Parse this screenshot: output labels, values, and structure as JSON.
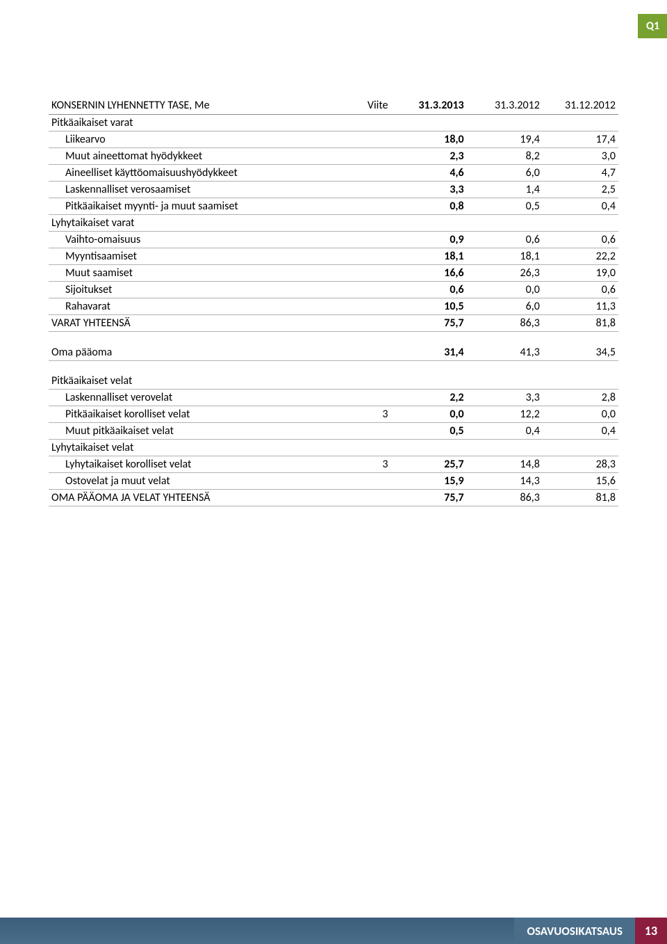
{
  "badge": "Q1",
  "table": {
    "title": "KONSERNIN LYHENNETTY TASE, Me",
    "viite_header": "Viite",
    "col1": "31.3.2013",
    "col2": "31.3.2012",
    "col3": "31.12.2012",
    "rows": [
      {
        "label": "Pitkäaikaiset varat",
        "indent": false,
        "viite": "",
        "v1": "",
        "v2": "",
        "v3": "",
        "line": true,
        "section": true
      },
      {
        "label": "Liikearvo",
        "indent": true,
        "viite": "",
        "v1": "18,0",
        "v2": "19,4",
        "v3": "17,4",
        "line": true
      },
      {
        "label": "Muut aineettomat hyödykkeet",
        "indent": true,
        "viite": "",
        "v1": "2,3",
        "v2": "8,2",
        "v3": "3,0",
        "line": true
      },
      {
        "label": "Aineelliset käyttöomaisuushyödykkeet",
        "indent": true,
        "viite": "",
        "v1": "4,6",
        "v2": "6,0",
        "v3": "4,7",
        "line": true
      },
      {
        "label": "Laskennalliset verosaamiset",
        "indent": true,
        "viite": "",
        "v1": "3,3",
        "v2": "1,4",
        "v3": "2,5",
        "line": true
      },
      {
        "label": "Pitkäaikaiset myynti- ja muut saamiset",
        "indent": true,
        "viite": "",
        "v1": "0,8",
        "v2": "0,5",
        "v3": "0,4",
        "line": true
      },
      {
        "label": "Lyhytaikaiset varat",
        "indent": false,
        "viite": "",
        "v1": "",
        "v2": "",
        "v3": "",
        "line": true,
        "section": true
      },
      {
        "label": "Vaihto-omaisuus",
        "indent": true,
        "viite": "",
        "v1": "0,9",
        "v2": "0,6",
        "v3": "0,6",
        "line": true
      },
      {
        "label": "Myyntisaamiset",
        "indent": true,
        "viite": "",
        "v1": "18,1",
        "v2": "18,1",
        "v3": "22,2",
        "line": true
      },
      {
        "label": "Muut saamiset",
        "indent": true,
        "viite": "",
        "v1": "16,6",
        "v2": "26,3",
        "v3": "19,0",
        "line": true
      },
      {
        "label": "Sijoitukset",
        "indent": true,
        "viite": "",
        "v1": "0,6",
        "v2": "0,0",
        "v3": "0,6",
        "line": true
      },
      {
        "label": "Rahavarat",
        "indent": true,
        "viite": "",
        "v1": "10,5",
        "v2": "6,0",
        "v3": "11,3",
        "line": true
      },
      {
        "label": "VARAT YHTEENSÄ",
        "indent": false,
        "viite": "",
        "v1": "75,7",
        "v2": "86,3",
        "v3": "81,8",
        "line": true,
        "bold1": true
      },
      {
        "spacer": true
      },
      {
        "label": "Oma pääoma",
        "indent": false,
        "viite": "",
        "v1": "31,4",
        "v2": "41,3",
        "v3": "34,5",
        "line": true,
        "bold1": true
      },
      {
        "spacer": true
      },
      {
        "label": "Pitkäaikaiset velat",
        "indent": false,
        "viite": "",
        "v1": "",
        "v2": "",
        "v3": "",
        "line": true,
        "section": true
      },
      {
        "label": "Laskennalliset verovelat",
        "indent": true,
        "viite": "",
        "v1": "2,2",
        "v2": "3,3",
        "v3": "2,8",
        "line": true
      },
      {
        "label": "Pitkäaikaiset korolliset velat",
        "indent": true,
        "viite": "3",
        "v1": "0,0",
        "v2": "12,2",
        "v3": "0,0",
        "line": true
      },
      {
        "label": "Muut pitkäaikaiset velat",
        "indent": true,
        "viite": "",
        "v1": "0,5",
        "v2": "0,4",
        "v3": "0,4",
        "line": true
      },
      {
        "label": "Lyhytaikaiset velat",
        "indent": false,
        "viite": "",
        "v1": "",
        "v2": "",
        "v3": "",
        "line": true,
        "section": true
      },
      {
        "label": "Lyhytaikaiset korolliset velat",
        "indent": true,
        "viite": "3",
        "v1": "25,7",
        "v2": "14,8",
        "v3": "28,3",
        "line": true
      },
      {
        "label": "Ostovelat ja muut velat",
        "indent": true,
        "viite": "",
        "v1": "15,9",
        "v2": "14,3",
        "v3": "15,6",
        "line": true
      },
      {
        "label": "OMA PÄÄOMA JA VELAT YHTEENSÄ",
        "indent": false,
        "viite": "",
        "v1": "75,7",
        "v2": "86,3",
        "v3": "81,8",
        "line": true,
        "bold1": true
      }
    ]
  },
  "footer": {
    "label": "OSAVUOSIKATSAUS",
    "page": "13"
  },
  "colors": {
    "badge_bg": "#78a22f",
    "line": "#b0b0b0",
    "footer_stripe": "#4a6d89",
    "footer_page_bg": "#8b1e3f"
  }
}
